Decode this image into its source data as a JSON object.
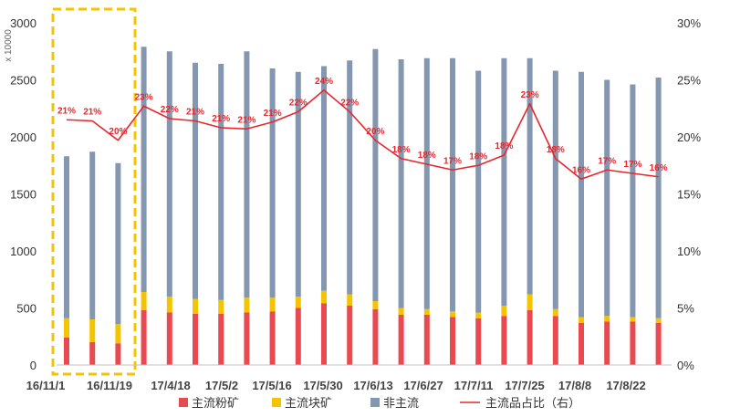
{
  "chart_data": {
    "type": "bar+line",
    "y_left_label": "x 10000",
    "ylim_left": [
      0,
      3000
    ],
    "y_left_ticks": [
      "0",
      "500",
      "1000",
      "1500",
      "2000",
      "2500",
      "3000"
    ],
    "ylim_right": [
      0,
      30
    ],
    "y_right_ticks": [
      "0%",
      "5%",
      "10%",
      "15%",
      "20%",
      "25%",
      "30%"
    ],
    "x_tick_labels": [
      "16/11/1",
      "16/11/19",
      "17/4/18",
      "17/5/2",
      "17/5/16",
      "17/5/30",
      "17/6/13",
      "17/6/27",
      "17/7/11",
      "17/7/25",
      "17/8/8",
      "17/8/22"
    ],
    "legend": [
      {
        "name": "主流粉矿",
        "color": "#e84a4f",
        "kind": "bar"
      },
      {
        "name": "主流块矿",
        "color": "#f5c400",
        "kind": "bar"
      },
      {
        "name": "非主流",
        "color": "#8497b0",
        "kind": "bar"
      },
      {
        "name": "主流品占比（右）",
        "color": "#e8262d",
        "kind": "line"
      }
    ],
    "stacked_bars": [
      {
        "fines": 240,
        "lump": 170,
        "other": 1420
      },
      {
        "fines": 200,
        "lump": 200,
        "other": 1470
      },
      {
        "fines": 190,
        "lump": 170,
        "other": 1410
      },
      {
        "fines": 480,
        "lump": 160,
        "other": 2150
      },
      {
        "fines": 460,
        "lump": 140,
        "other": 2150
      },
      {
        "fines": 450,
        "lump": 130,
        "other": 2070
      },
      {
        "fines": 450,
        "lump": 120,
        "other": 2070
      },
      {
        "fines": 460,
        "lump": 130,
        "other": 2160
      },
      {
        "fines": 470,
        "lump": 120,
        "other": 2010
      },
      {
        "fines": 500,
        "lump": 100,
        "other": 1970
      },
      {
        "fines": 540,
        "lump": 110,
        "other": 1970
      },
      {
        "fines": 520,
        "lump": 100,
        "other": 2050
      },
      {
        "fines": 490,
        "lump": 70,
        "other": 2210
      },
      {
        "fines": 440,
        "lump": 60,
        "other": 2180
      },
      {
        "fines": 440,
        "lump": 50,
        "other": 2200
      },
      {
        "fines": 420,
        "lump": 50,
        "other": 2220
      },
      {
        "fines": 410,
        "lump": 50,
        "other": 2120
      },
      {
        "fines": 430,
        "lump": 90,
        "other": 2170
      },
      {
        "fines": 480,
        "lump": 140,
        "other": 2070
      },
      {
        "fines": 430,
        "lump": 60,
        "other": 2090
      },
      {
        "fines": 370,
        "lump": 50,
        "other": 2150
      },
      {
        "fines": 380,
        "lump": 50,
        "other": 2070
      },
      {
        "fines": 380,
        "lump": 40,
        "other": 2040
      },
      {
        "fines": 370,
        "lump": 40,
        "other": 2110
      }
    ],
    "ratio_series": {
      "name": "主流品占比（右）",
      "values": [
        21.5,
        21.4,
        19.7,
        22.7,
        21.6,
        21.4,
        20.8,
        20.7,
        21.3,
        22.2,
        24.1,
        22.2,
        19.7,
        18.1,
        17.6,
        17.1,
        17.5,
        18.4,
        22.9,
        18.1,
        16.3,
        17.1,
        16.8,
        16.5
      ],
      "labels": [
        "21%",
        "21%",
        "20%",
        "23%",
        "22%",
        "21%",
        "21%",
        "21%",
        "21%",
        "22%",
        "24%",
        "22%",
        "20%",
        "18%",
        "18%",
        "17%",
        "18%",
        "18%",
        "23%",
        "18%",
        "16%",
        "17%",
        "17%",
        "16%"
      ]
    },
    "highlight_box": {
      "style": "dashed",
      "color": "#f5c400"
    }
  }
}
